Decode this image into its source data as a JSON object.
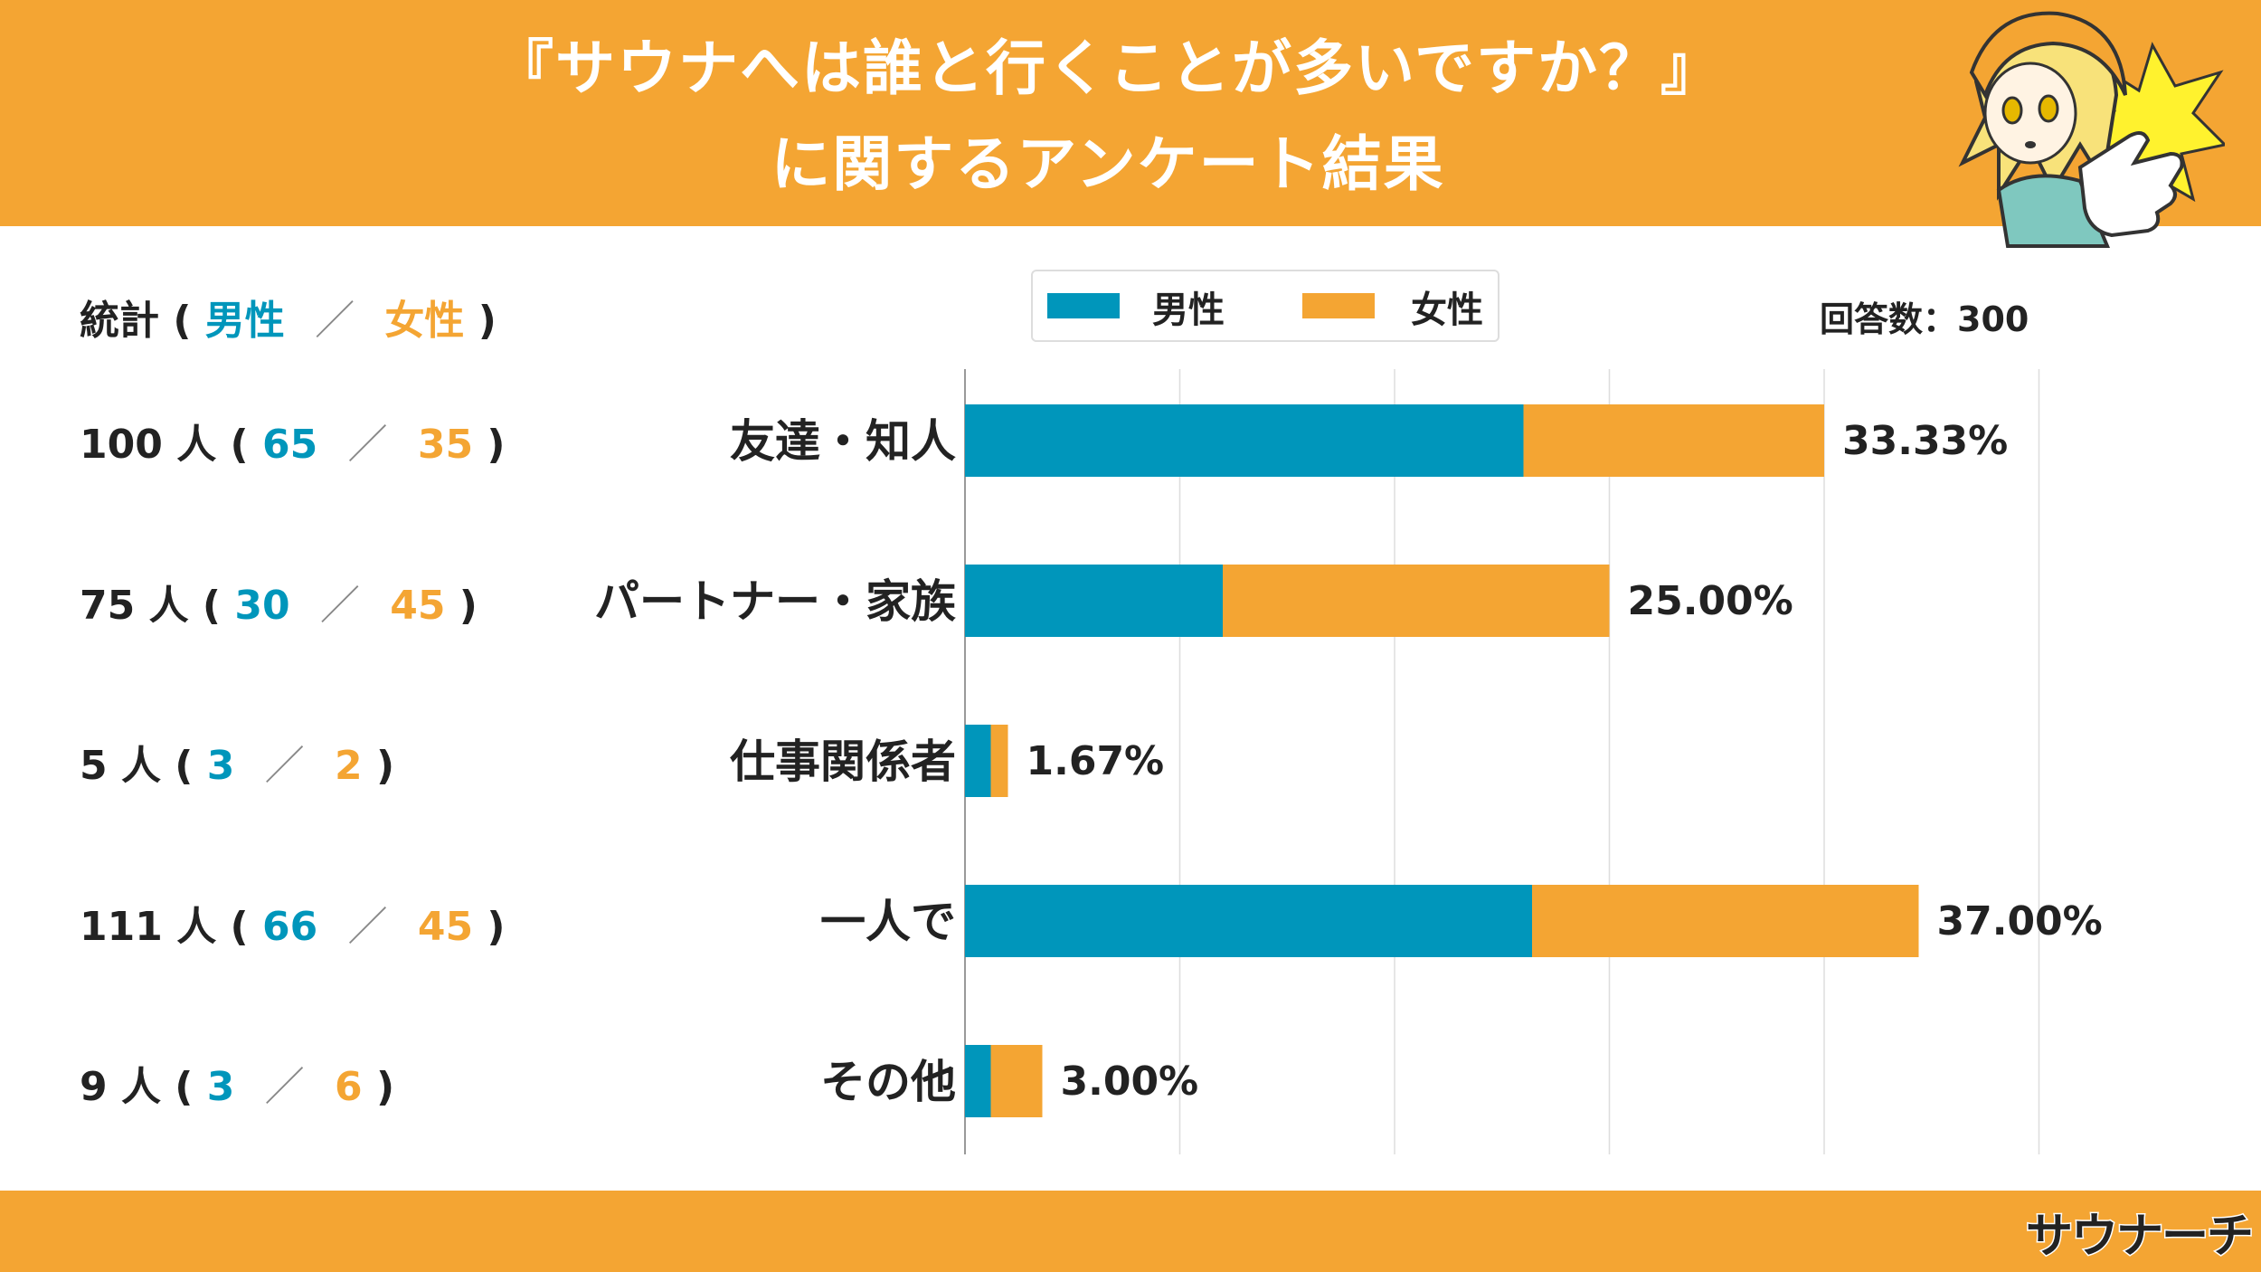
{
  "header": {
    "title_line1": "『サウナへは誰と行くことが多いですか？』",
    "title_line2": "に関するアンケート結果"
  },
  "stats": {
    "label": "統計",
    "male_label": "男性",
    "female_label": "女性",
    "unit": "人",
    "rows": [
      {
        "total": "100",
        "male": "65",
        "female": "35"
      },
      {
        "total": "75",
        "male": "30",
        "female": "45"
      },
      {
        "total": "5",
        "male": "3",
        "female": "2"
      },
      {
        "total": "111",
        "male": "66",
        "female": "45"
      },
      {
        "total": "9",
        "male": "3",
        "female": "6"
      }
    ]
  },
  "respondents": "回答数：300",
  "logo": "サウナーチ",
  "colors": {
    "male": "#0096BB",
    "female": "#F4A533"
  },
  "chart_data": {
    "type": "bar",
    "orientation": "horizontal",
    "stacked": true,
    "categories": [
      "友達・知人",
      "パートナー・家族",
      "仕事関係者",
      "一人で",
      "その他"
    ],
    "series": [
      {
        "name": "男性",
        "values": [
          65,
          30,
          3,
          66,
          3
        ]
      },
      {
        "name": "女性",
        "values": [
          35,
          45,
          2,
          45,
          6
        ]
      }
    ],
    "data_labels": [
      "33.33%",
      "25.00%",
      "1.67%",
      "37.00%",
      "3.00%"
    ],
    "xlim": [
      0,
      125
    ],
    "grid": true,
    "legend_position": "top"
  }
}
